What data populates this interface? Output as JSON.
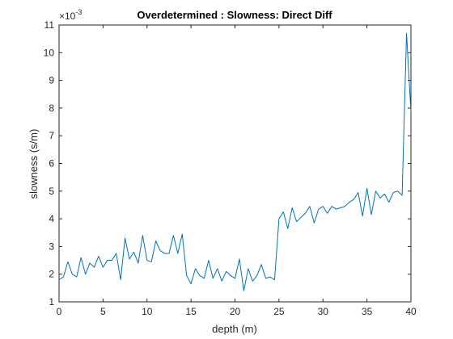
{
  "chart_data": {
    "type": "line",
    "title": "Overdetermined : Slowness: Direct Diff",
    "xlabel": "depth (m)",
    "ylabel": "slowness (s/m)",
    "y_exponent_prefix": "×10",
    "y_exponent_power": "-3",
    "xlim": [
      0,
      40
    ],
    "ylim": [
      1,
      11
    ],
    "xticks": [
      0,
      5,
      10,
      15,
      20,
      25,
      30,
      35,
      40
    ],
    "xtick_labels": [
      "0",
      "5",
      "10",
      "15",
      "20",
      "25",
      "30",
      "35",
      "40"
    ],
    "yticks": [
      1,
      2,
      3,
      4,
      5,
      6,
      7,
      8,
      9,
      10,
      11
    ],
    "ytick_labels": [
      "1",
      "2",
      "3",
      "4",
      "5",
      "6",
      "7",
      "8",
      "9",
      "10",
      "11"
    ],
    "grid": false,
    "colors": {
      "series": "#0072BD",
      "axes": "#262626"
    },
    "series": [
      {
        "x": [
          0,
          0.5,
          1,
          1.5,
          2,
          2.5,
          3,
          3.5,
          4,
          4.5,
          5,
          5.5,
          6,
          6.5,
          7,
          7.5,
          8,
          8.5,
          9,
          9.5,
          10,
          10.5,
          11,
          11.5,
          12,
          12.5,
          13,
          13.5,
          14,
          14.5,
          15,
          15.5,
          16,
          16.5,
          17,
          17.5,
          18,
          18.5,
          19,
          19.5,
          20,
          20.5,
          21,
          21.5,
          22,
          22.5,
          23,
          23.5,
          24,
          24.5,
          25,
          25.5,
          26,
          26.5,
          27,
          27.5,
          28,
          28.5,
          29,
          29.5,
          30,
          30.5,
          31,
          31.5,
          32,
          32.5,
          33,
          33.5,
          34,
          34.5,
          35,
          35.5,
          36,
          36.5,
          37,
          37.5,
          38,
          38.5,
          39,
          39.5,
          40
        ],
        "values": [
          1.8,
          1.9,
          2.45,
          2.0,
          1.9,
          2.6,
          2.0,
          2.4,
          2.25,
          2.65,
          2.25,
          2.5,
          2.5,
          2.75,
          1.8,
          3.3,
          2.55,
          2.8,
          2.4,
          3.4,
          2.5,
          2.45,
          3.2,
          2.85,
          2.75,
          2.75,
          3.4,
          2.75,
          3.45,
          1.95,
          1.65,
          2.2,
          1.95,
          1.85,
          2.5,
          1.85,
          2.2,
          1.75,
          2.1,
          1.95,
          1.85,
          2.55,
          1.4,
          2.2,
          1.75,
          1.95,
          2.35,
          1.85,
          1.9,
          1.8,
          4.0,
          4.25,
          3.65,
          4.4,
          3.9,
          4.05,
          4.2,
          4.45,
          3.85,
          4.35,
          4.45,
          4.2,
          4.45,
          4.35,
          4.4,
          4.45,
          4.6,
          4.7,
          4.95,
          4.1,
          5.1,
          4.15,
          5.0,
          4.75,
          4.9,
          4.6,
          4.95,
          5.0,
          4.85,
          10.7,
          7.85
        ]
      }
    ]
  }
}
